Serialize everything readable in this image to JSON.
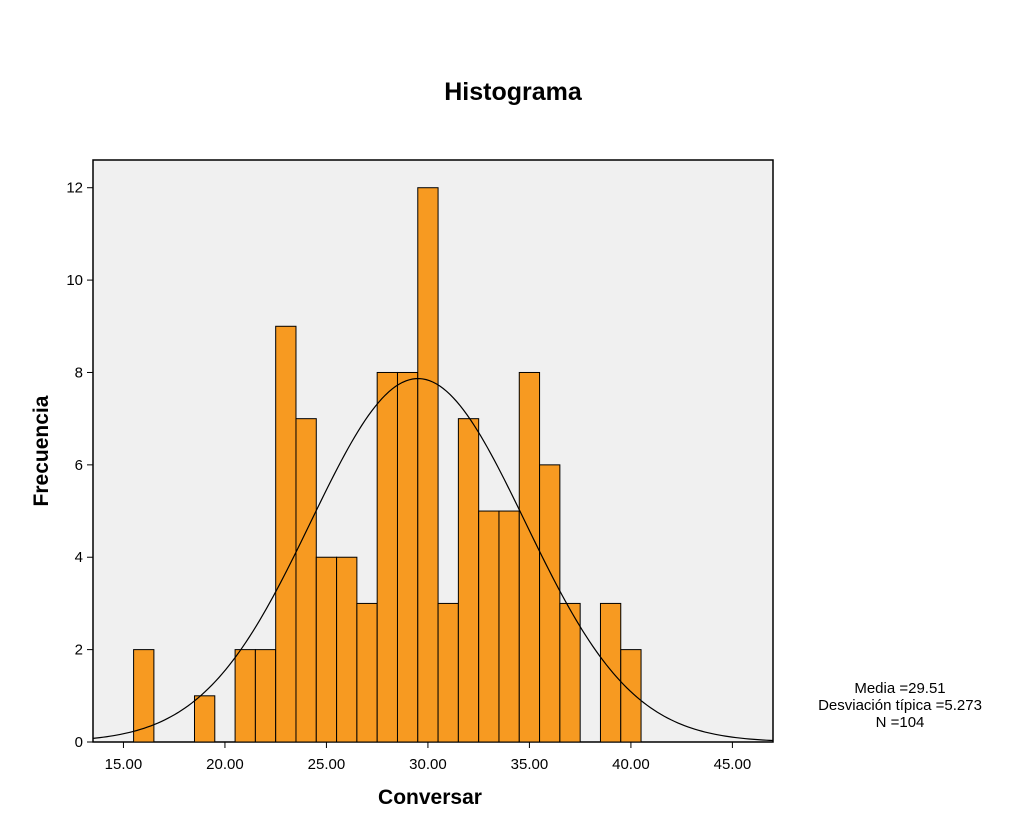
{
  "chart_data": {
    "type": "bar",
    "title": "Histograma",
    "xlabel": "Conversar",
    "ylabel": "Frecuencia",
    "xlim": [
      13.5,
      47.0
    ],
    "ylim": [
      0,
      12.6
    ],
    "x_ticks": [
      15,
      20,
      25,
      30,
      35,
      40,
      45
    ],
    "x_tick_labels": [
      "15.00",
      "20.00",
      "25.00",
      "30.00",
      "35.00",
      "40.00",
      "45.00"
    ],
    "y_ticks": [
      0,
      2,
      4,
      6,
      8,
      10,
      12
    ],
    "y_tick_labels": [
      "0",
      "2",
      "4",
      "6",
      "8",
      "10",
      "12"
    ],
    "bin_width": 1,
    "bins": [
      {
        "x": 16,
        "count": 2
      },
      {
        "x": 19,
        "count": 1
      },
      {
        "x": 21,
        "count": 2
      },
      {
        "x": 22,
        "count": 2
      },
      {
        "x": 23,
        "count": 9
      },
      {
        "x": 24,
        "count": 7
      },
      {
        "x": 25,
        "count": 4
      },
      {
        "x": 26,
        "count": 4
      },
      {
        "x": 27,
        "count": 3
      },
      {
        "x": 28,
        "count": 8
      },
      {
        "x": 29,
        "count": 8
      },
      {
        "x": 30,
        "count": 12
      },
      {
        "x": 31,
        "count": 3
      },
      {
        "x": 32,
        "count": 7
      },
      {
        "x": 33,
        "count": 5
      },
      {
        "x": 34,
        "count": 5
      },
      {
        "x": 35,
        "count": 8
      },
      {
        "x": 36,
        "count": 6
      },
      {
        "x": 37,
        "count": 3
      },
      {
        "x": 39,
        "count": 3
      },
      {
        "x": 40,
        "count": 2
      }
    ],
    "normal_curve": {
      "mean": 29.51,
      "sd": 5.273,
      "n": 104
    },
    "grid": false,
    "colors": {
      "bar_fill": "#F79A21",
      "bar_stroke": "#000000",
      "plot_background": "#F0F0F0",
      "curve": "#000000"
    }
  },
  "stats": {
    "media": "Media =29.51",
    "desviacion": "Desviación típica =5.273",
    "n": "N =104"
  }
}
